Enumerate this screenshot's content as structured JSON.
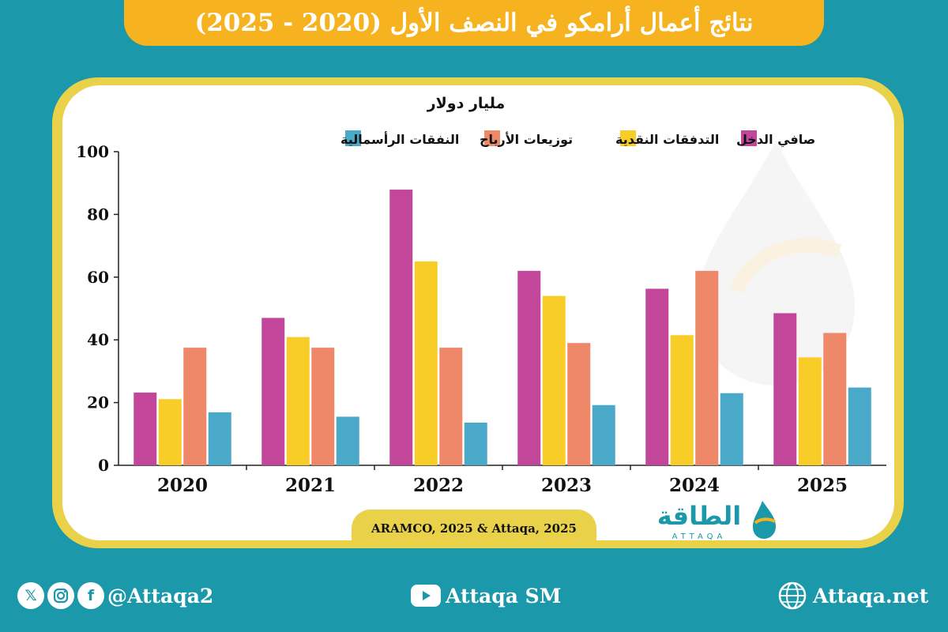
{
  "title": "نتائج أعمال أرامكو في النصف الأول (2020 - 2025)",
  "chart_data": {
    "type": "bar",
    "unit_label": "مليار دولار",
    "categories": [
      "2020",
      "2021",
      "2022",
      "2023",
      "2024",
      "2025"
    ],
    "series": [
      {
        "name": "صافي الدخل",
        "color": "#c2479b",
        "values": [
          23.2,
          47.0,
          87.9,
          62.0,
          56.3,
          48.5
        ]
      },
      {
        "name": "التدفقات النقدية",
        "color": "#f8cd28",
        "values": [
          21.1,
          40.9,
          65.0,
          54.0,
          41.5,
          34.4
        ]
      },
      {
        "name": "توزيعات الأرباح",
        "color": "#ef8869",
        "values": [
          37.5,
          37.5,
          37.5,
          39.0,
          62.0,
          42.2
        ]
      },
      {
        "name": "النفقات الرأسمالية",
        "color": "#4aa8c9",
        "values": [
          16.9,
          15.5,
          13.6,
          19.2,
          23.0,
          24.8
        ]
      }
    ],
    "yticks": [
      "0",
      "20",
      "40",
      "60",
      "80",
      "100"
    ],
    "ylim": [
      0,
      100
    ],
    "grid": false,
    "legend_position": "top"
  },
  "source": "ARAMCO, 2025 & Attaqa, 2025",
  "logo": {
    "arabic": "الطاقة",
    "latin": "ATTAQA"
  },
  "footer": {
    "social_handle": "@Attaqa2",
    "youtube": "Attaqa SM",
    "website": "Attaqa.net"
  },
  "icons": {
    "x": "x-icon",
    "instagram": "instagram-icon",
    "facebook": "facebook-icon",
    "youtube": "youtube-icon",
    "globe": "globe-icon"
  }
}
